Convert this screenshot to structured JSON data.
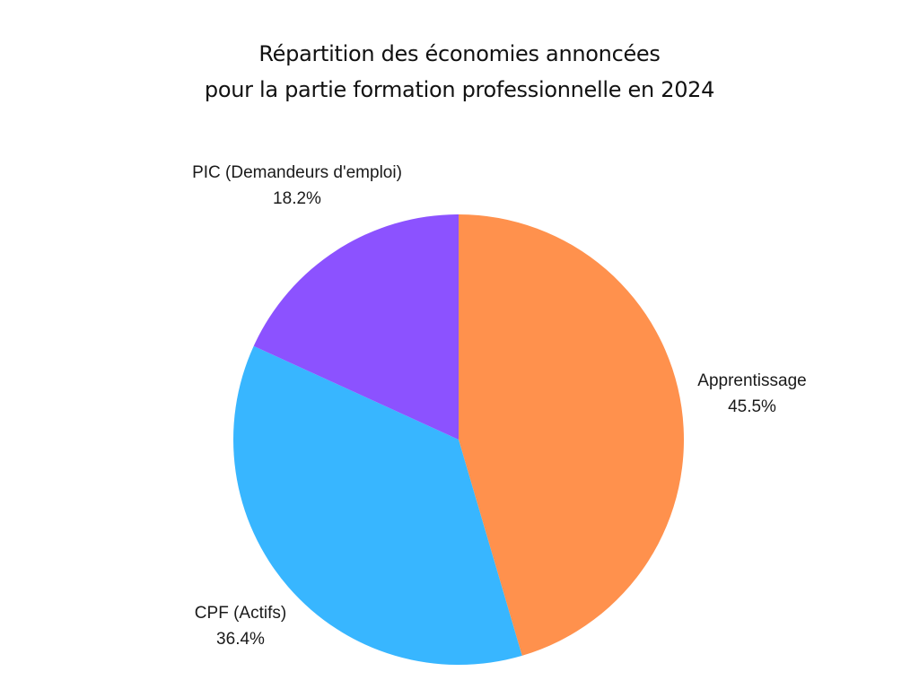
{
  "chart_data": {
    "type": "pie",
    "title": "Répartition des économies annoncées pour la partie formation professionnelle en 2024",
    "title_lines": [
      "Répartition des économies annoncées",
      "pour la partie formation professionnelle en 2024"
    ],
    "categories": [
      "Apprentissage",
      "CPF (Actifs)",
      "PIC (Demandeurs d'emploi)"
    ],
    "values": [
      45.5,
      36.4,
      18.2
    ],
    "value_labels": [
      "45.5%",
      "36.4%",
      "18.2%"
    ],
    "colors": [
      "#FF914D",
      "#38B6FF",
      "#8C52FF"
    ],
    "start_angle": "12 o'clock",
    "direction": "clockwise",
    "legend": "none (labels outside slices)"
  },
  "labels": {
    "apprentissage": {
      "name": "Apprentissage",
      "pct": "45.5%"
    },
    "cpf": {
      "name": "CPF (Actifs)",
      "pct": "36.4%"
    },
    "pic": {
      "name": "PIC (Demandeurs d'emploi)",
      "pct": "18.2%"
    }
  }
}
